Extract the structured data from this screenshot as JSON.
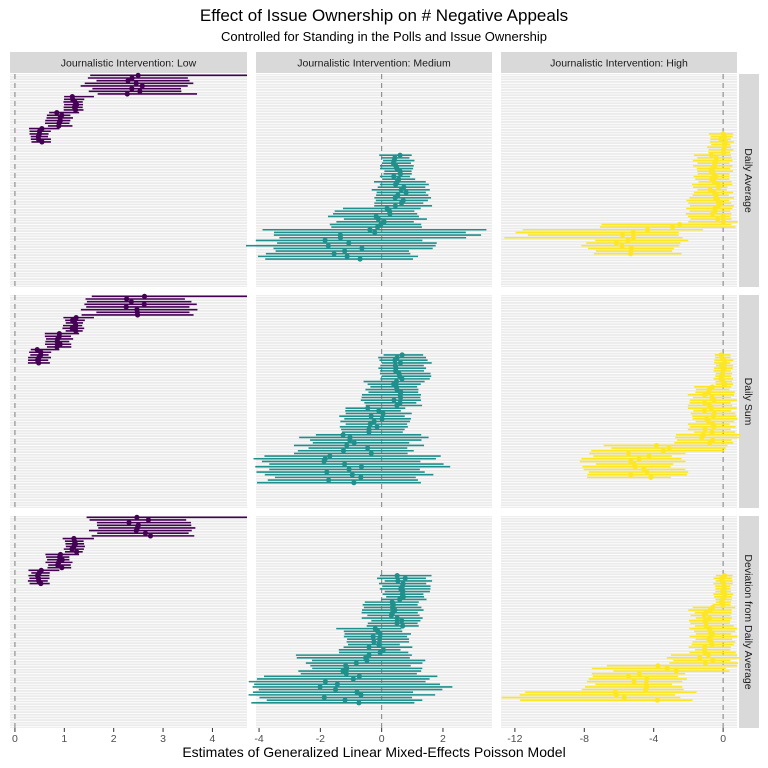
{
  "chart_data": {
    "type": "forest-plot-facet",
    "title": "Effect of Issue Ownership  on # Negative Appeals",
    "subtitle": "Controlled for Standing in the Polls and Issue Ownership",
    "xlabel": "Estimates of Generalized Linear Mixed-Effects Poisson Model",
    "ylabel": "",
    "grid": true,
    "legend": "none",
    "colors": {
      "low": "#440154",
      "medium": "#21908C",
      "high": "#FDE725",
      "panel_bg": "#EBEBEB",
      "strip_bg": "#D9D9D9",
      "zero_line": "#7f7f7f"
    },
    "columns": [
      {
        "key": "low",
        "label": "Journalistic Intervention: Low",
        "xlim": [
          -0.1,
          4.7
        ],
        "ticks": [
          0,
          1,
          2,
          3,
          4
        ],
        "tick_labels": [
          "0",
          "1",
          "2",
          "3",
          "4"
        ]
      },
      {
        "key": "medium",
        "label": "Journalistic Intervention: Medium",
        "xlim": [
          -4.1,
          3.6
        ],
        "ticks": [
          -4,
          -2,
          0,
          2
        ],
        "tick_labels": [
          "-4",
          "-2",
          "0",
          "2"
        ]
      },
      {
        "key": "high",
        "label": "Journalistic Intervention: High",
        "xlim": [
          -12.8,
          0.8
        ],
        "ticks": [
          -12,
          -8,
          -4,
          0
        ],
        "tick_labels": [
          "-12",
          "-8",
          "-4",
          "0"
        ]
      }
    ],
    "rows": [
      {
        "key": "avg",
        "label": "Daily Average"
      },
      {
        "key": "sum",
        "label": "Daily Sum"
      },
      {
        "key": "dev",
        "label": "Deviation from Daily Average"
      }
    ],
    "n_rows_per_panel": 80,
    "panels": {
      "low": {
        "avg": [
          {
            "from": 0,
            "to": 8,
            "est": 2.5,
            "lo": 1.5,
            "hi": 3.5,
            "hi_max": 4.7
          },
          {
            "from": 8,
            "to": 14,
            "est": 1.2,
            "lo": 1.0,
            "hi": 1.4,
            "hi_max": 1.6
          },
          {
            "from": 14,
            "to": 20,
            "est": 0.9,
            "lo": 0.65,
            "hi": 1.15,
            "hi_max": 1.3
          },
          {
            "from": 20,
            "to": 26,
            "est": 0.5,
            "lo": 0.3,
            "hi": 0.7,
            "hi_max": 0.9
          }
        ],
        "sum": [
          {
            "from": 0,
            "to": 8,
            "est": 2.5,
            "lo": 1.5,
            "hi": 3.5,
            "hi_max": 4.7
          },
          {
            "from": 8,
            "to": 14,
            "est": 1.2,
            "lo": 1.0,
            "hi": 1.4,
            "hi_max": 1.6
          },
          {
            "from": 14,
            "to": 20,
            "est": 0.9,
            "lo": 0.65,
            "hi": 1.15,
            "hi_max": 1.3
          },
          {
            "from": 20,
            "to": 26,
            "est": 0.5,
            "lo": 0.3,
            "hi": 0.7,
            "hi_max": 0.9
          }
        ],
        "dev": [
          {
            "from": 0,
            "to": 8,
            "est": 2.5,
            "lo": 1.5,
            "hi": 3.5,
            "hi_max": 4.7
          },
          {
            "from": 8,
            "to": 14,
            "est": 1.2,
            "lo": 1.0,
            "hi": 1.4,
            "hi_max": 1.6
          },
          {
            "from": 14,
            "to": 20,
            "est": 0.9,
            "lo": 0.65,
            "hi": 1.15,
            "hi_max": 1.3
          },
          {
            "from": 20,
            "to": 26,
            "est": 0.5,
            "lo": 0.3,
            "hi": 0.7,
            "hi_max": 0.9
          }
        ]
      },
      "medium": {
        "avg": [
          {
            "from": 30,
            "to": 40,
            "est": 0.5,
            "lo": 0.0,
            "hi": 1.0
          },
          {
            "from": 40,
            "to": 50,
            "est": 0.6,
            "lo": -0.2,
            "hi": 1.5
          },
          {
            "from": 50,
            "to": 58,
            "est": 0.0,
            "lo": -1.5,
            "hi": 1.3
          },
          {
            "from": 58,
            "to": 62,
            "est": -0.5,
            "lo": -3.5,
            "hi": 3.3
          },
          {
            "from": 62,
            "to": 70,
            "est": -1.3,
            "lo": -3.9,
            "hi": 1.4
          }
        ],
        "sum": [
          {
            "from": 22,
            "to": 32,
            "est": 0.6,
            "lo": 0.0,
            "hi": 1.5
          },
          {
            "from": 32,
            "to": 42,
            "est": 0.5,
            "lo": -0.5,
            "hi": 1.3
          },
          {
            "from": 42,
            "to": 52,
            "est": -0.2,
            "lo": -1.3,
            "hi": 0.8
          },
          {
            "from": 52,
            "to": 60,
            "est": -0.8,
            "lo": -2.5,
            "hi": 1.2
          },
          {
            "from": 60,
            "to": 66,
            "est": -1.3,
            "lo": -3.9,
            "hi": 1.8
          },
          {
            "from": 66,
            "to": 71,
            "est": -1.3,
            "lo": -3.9,
            "hi": 1.4
          }
        ],
        "dev": [
          {
            "from": 22,
            "to": 32,
            "est": 0.6,
            "lo": 0.0,
            "hi": 1.5
          },
          {
            "from": 32,
            "to": 42,
            "est": 0.5,
            "lo": -0.5,
            "hi": 1.3
          },
          {
            "from": 42,
            "to": 52,
            "est": -0.2,
            "lo": -1.3,
            "hi": 0.8
          },
          {
            "from": 52,
            "to": 60,
            "est": -0.8,
            "lo": -2.5,
            "hi": 1.2
          },
          {
            "from": 60,
            "to": 66,
            "est": -1.3,
            "lo": -3.9,
            "hi": 1.8
          },
          {
            "from": 66,
            "to": 71,
            "est": -1.3,
            "lo": -3.9,
            "hi": 1.4
          }
        ]
      },
      "high": {
        "avg": [
          {
            "from": 22,
            "to": 30,
            "est": 0.0,
            "lo": -0.8,
            "hi": 0.5
          },
          {
            "from": 30,
            "to": 46,
            "est": -0.5,
            "lo": -1.6,
            "hi": 0.4
          },
          {
            "from": 46,
            "to": 56,
            "est": -0.3,
            "lo": -2.0,
            "hi": 0.6
          },
          {
            "from": 56,
            "to": 58,
            "est": -3.2,
            "lo": -6.5,
            "hi": 0.2
          },
          {
            "from": 58,
            "to": 62,
            "est": -4.8,
            "lo": -12.0,
            "hi": -2.0
          },
          {
            "from": 62,
            "to": 68,
            "est": -5.5,
            "lo": -7.8,
            "hi": -2.5
          }
        ],
        "sum": [
          {
            "from": 22,
            "to": 34,
            "est": 0.0,
            "lo": -0.5,
            "hi": 0.5
          },
          {
            "from": 34,
            "to": 52,
            "est": -0.8,
            "lo": -1.8,
            "hi": 0.6
          },
          {
            "from": 52,
            "to": 56,
            "est": -1.0,
            "lo": -3.0,
            "hi": 0.8
          },
          {
            "from": 56,
            "to": 59,
            "est": -3.2,
            "lo": -7.0,
            "hi": 0.2
          },
          {
            "from": 59,
            "to": 69,
            "est": -4.8,
            "lo": -7.8,
            "hi": -2.5
          }
        ],
        "dev": [
          {
            "from": 22,
            "to": 34,
            "est": 0.0,
            "lo": -0.5,
            "hi": 0.5
          },
          {
            "from": 34,
            "to": 52,
            "est": -0.8,
            "lo": -1.8,
            "hi": 0.6
          },
          {
            "from": 52,
            "to": 56,
            "est": -1.0,
            "lo": -3.0,
            "hi": 0.8
          },
          {
            "from": 56,
            "to": 59,
            "est": -3.2,
            "lo": -7.0,
            "hi": 0.2
          },
          {
            "from": 59,
            "to": 66,
            "est": -4.8,
            "lo": -7.8,
            "hi": -2.5
          },
          {
            "from": 66,
            "to": 70,
            "est": -5.0,
            "lo": -12.0,
            "hi": -2.0
          }
        ]
      }
    }
  }
}
